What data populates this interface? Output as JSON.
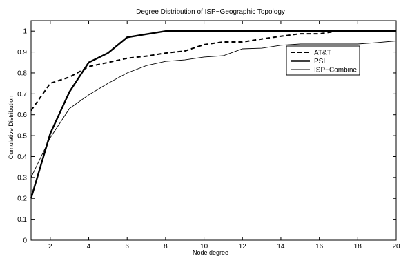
{
  "chart_data": {
    "type": "line",
    "title": "Degree Distribution of ISP−Geographic Topology",
    "xlabel": "Node degree",
    "ylabel": "Cumulative Distribution",
    "xlim": [
      1,
      20
    ],
    "ylim": [
      0,
      1.05
    ],
    "xticks": [
      2,
      4,
      6,
      8,
      10,
      12,
      14,
      16,
      18,
      20
    ],
    "yticks": [
      0,
      0.1,
      0.2,
      0.3,
      0.4,
      0.5,
      0.6,
      0.7,
      0.8,
      0.9,
      1
    ],
    "grid": false,
    "legend_position": "right",
    "series": [
      {
        "name": "AT&T",
        "style": "dashed",
        "color": "#000000",
        "x": [
          1,
          2,
          3,
          4,
          5,
          6,
          7,
          8,
          9,
          10,
          11,
          12,
          13,
          14,
          15,
          16,
          17,
          18,
          19,
          20
        ],
        "y": [
          0.62,
          0.75,
          0.78,
          0.83,
          0.85,
          0.87,
          0.88,
          0.895,
          0.905,
          0.935,
          0.948,
          0.948,
          0.962,
          0.975,
          0.987,
          0.987,
          1,
          1,
          1,
          1
        ]
      },
      {
        "name": "PSI",
        "style": "thick",
        "color": "#000000",
        "x": [
          1,
          2,
          3,
          4,
          5,
          6,
          7,
          8,
          9,
          10,
          11,
          12,
          13,
          14,
          15,
          16,
          17,
          18,
          19,
          20
        ],
        "y": [
          0.2,
          0.51,
          0.71,
          0.85,
          0.895,
          0.97,
          0.985,
          1,
          1,
          1,
          1,
          1,
          1,
          1,
          1,
          1,
          1,
          1,
          1,
          1
        ]
      },
      {
        "name": "ISP−Combine",
        "style": "thin",
        "color": "#000000",
        "x": [
          1,
          2,
          3,
          4,
          5,
          6,
          7,
          8,
          9,
          10,
          11,
          12,
          13,
          14,
          15,
          16,
          17,
          18,
          19,
          20
        ],
        "y": [
          0.3,
          0.49,
          0.63,
          0.695,
          0.75,
          0.8,
          0.835,
          0.855,
          0.862,
          0.876,
          0.882,
          0.915,
          0.918,
          0.932,
          0.938,
          0.938,
          0.938,
          0.938,
          0.945,
          0.953
        ]
      }
    ]
  }
}
